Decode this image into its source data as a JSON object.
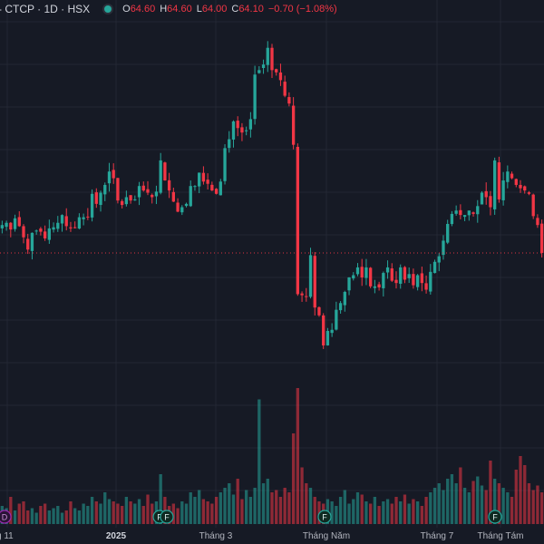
{
  "header": {
    "title": "- CTCP · 1D · HSX",
    "o_key": "O",
    "o_val": "64.60",
    "h_key": "H",
    "h_val": "64.60",
    "l_key": "L",
    "l_val": "64.00",
    "c_key": "C",
    "c_val": "64.10",
    "change": "−0.70 (−1.08%)"
  },
  "colors": {
    "up": "#26a69a",
    "down": "#f23645",
    "background": "#161a25",
    "grid": "#232734"
  },
  "icons": [
    "dividend-marker-icon",
    "financials-marker-icon"
  ],
  "markers": [
    {
      "label": "D",
      "type": "dividend",
      "position": "first"
    },
    {
      "label": "F",
      "type": "financials"
    },
    {
      "label": "F",
      "type": "financials"
    },
    {
      "label": "F",
      "type": "financials"
    },
    {
      "label": "F",
      "type": "financials"
    }
  ],
  "chart_data": {
    "type": "candlestick",
    "ticker": "CTCP",
    "interval": "1D",
    "exchange": "HSX",
    "x_tick_labels": [
      "g 11",
      "2025",
      "Tháng 3",
      "Tháng Năm",
      "Tháng 7",
      "Tháng Tám"
    ],
    "bold_tick_labels": [
      "2025"
    ],
    "y_range": [
      51.0,
      85.0
    ],
    "last_close": 64.1,
    "price_line": 64.1,
    "grid": true,
    "price_series_approx": [
      66.6,
      66.8,
      66.2,
      67.2,
      66.5,
      65.5,
      64.4,
      65.9,
      66.1,
      66.0,
      65.4,
      66.3,
      66.4,
      66.8,
      67.5,
      66.5,
      66.3,
      66.4,
      67.3,
      67.3,
      67.3,
      69.4,
      68.5,
      69.5,
      70.2,
      71.4,
      70.8,
      68.8,
      68.4,
      69.1,
      68.8,
      68.9,
      70.1,
      69.7,
      69.5,
      69.1,
      69.6,
      72.4,
      70.6,
      69.7,
      68.7,
      67.8,
      68.2,
      68.5,
      70.1,
      70.1,
      71.3,
      70.5,
      70.3,
      69.7,
      69.4,
      70.5,
      73.5,
      74.3,
      75.9,
      75.3,
      74.9,
      75.1,
      76.1,
      80.1,
      80.5,
      81.0,
      82.5,
      80.5,
      80.3,
      79.6,
      78.2,
      77.5,
      73.8,
      60.4,
      60.3,
      60.2,
      63.9,
      59.2,
      58.5,
      55.8,
      57.1,
      57.2,
      59.0,
      59.6,
      60.6,
      61.9,
      62.1,
      62.8,
      61.9,
      62.8,
      61.1,
      61.1,
      61.0,
      62.3,
      62.8,
      61.6,
      61.4,
      62.8,
      61.7,
      62.2,
      61.2,
      62.1,
      61.4,
      60.8,
      62.4,
      63.3,
      63.8,
      65.2,
      66.7,
      67.6,
      67.9,
      67.5,
      67.5,
      67.9,
      67.6,
      68.3,
      69.5,
      69.1,
      68.2,
      72.4,
      68.9,
      70.6,
      71.4,
      70.8,
      70.2,
      69.9,
      69.7,
      69.4,
      67.4,
      66.6,
      64.1
    ],
    "volume_series_approx": [
      8,
      7,
      12,
      6,
      9,
      10,
      6,
      7,
      5,
      8,
      9,
      6,
      7,
      8,
      5,
      6,
      10,
      7,
      6,
      9,
      8,
      12,
      10,
      9,
      14,
      11,
      10,
      9,
      8,
      12,
      10,
      9,
      11,
      8,
      13,
      9,
      10,
      22,
      12,
      8,
      9,
      7,
      10,
      9,
      14,
      12,
      15,
      11,
      10,
      9,
      12,
      14,
      16,
      18,
      13,
      20,
      11,
      15,
      12,
      16,
      55,
      18,
      20,
      14,
      15,
      12,
      16,
      14,
      40,
      60,
      25,
      18,
      16,
      12,
      10,
      9,
      11,
      10,
      8,
      12,
      15,
      9,
      11,
      14,
      13,
      10,
      9,
      12,
      8,
      10,
      11,
      9,
      12,
      10,
      13,
      9,
      11,
      10,
      8,
      12,
      14,
      16,
      18,
      15,
      20,
      22,
      18,
      25,
      16,
      14,
      19,
      21,
      17,
      15,
      28,
      20,
      18,
      16,
      14,
      12,
      24,
      30,
      26,
      18,
      15,
      17,
      14
    ]
  }
}
